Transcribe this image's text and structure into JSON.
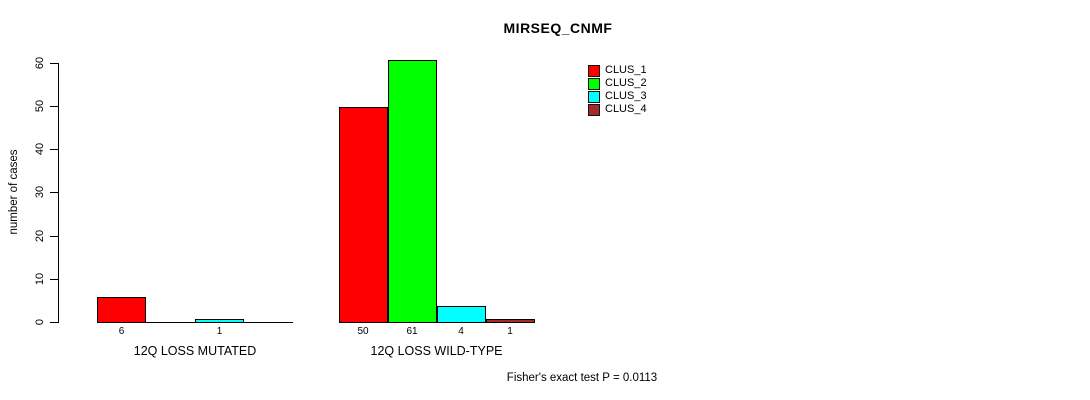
{
  "title": "MIRSEQ_CNMF",
  "footer": "Fisher's exact test P = 0.0113",
  "chart_data": {
    "type": "bar",
    "title": "MIRSEQ_CNMF",
    "xlabel": "",
    "ylabel": "number of cases",
    "ylim": [
      0,
      60
    ],
    "yticks": [
      0,
      10,
      20,
      30,
      40,
      50,
      60
    ],
    "grid": false,
    "legend_position": "top-right",
    "bar_value_labels": "shown under each nonzero bar",
    "categories": [
      "12Q LOSS MUTATED",
      "12Q LOSS WILD-TYPE"
    ],
    "series": [
      {
        "name": "CLUS_1",
        "color": "#FF0000",
        "values": [
          6,
          50
        ]
      },
      {
        "name": "CLUS_2",
        "color": "#00FF00",
        "values": [
          0,
          61
        ]
      },
      {
        "name": "CLUS_3",
        "color": "#00FFFF",
        "values": [
          1,
          4
        ]
      },
      {
        "name": "CLUS_4",
        "color": "#A52A2A",
        "values": [
          0,
          1
        ]
      }
    ],
    "annotation": "Fisher's exact test P = 0.0113"
  }
}
